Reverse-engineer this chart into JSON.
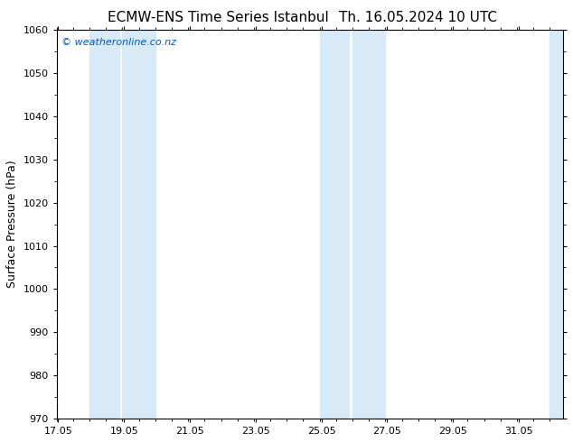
{
  "title_left": "ECMW-ENS Time Series Istanbul",
  "title_right": "Th. 16.05.2024 10 UTC",
  "ylabel": "Surface Pressure (hPa)",
  "ylim": [
    970,
    1060
  ],
  "yticks": [
    970,
    980,
    990,
    1000,
    1010,
    1020,
    1030,
    1040,
    1050,
    1060
  ],
  "xlim_start": 17.0,
  "xlim_end": 32.4,
  "xticks": [
    17.05,
    19.05,
    21.05,
    23.05,
    25.05,
    27.05,
    29.05,
    31.05
  ],
  "xticklabels": [
    "17.05",
    "19.05",
    "21.05",
    "23.05",
    "25.05",
    "27.05",
    "29.05",
    "31.05"
  ],
  "shaded_bands": [
    {
      "x_start": 18.0,
      "x_end": 18.9
    },
    {
      "x_start": 19.0,
      "x_end": 20.0
    },
    {
      "x_start": 25.0,
      "x_end": 25.9
    },
    {
      "x_start": 26.0,
      "x_end": 27.0
    },
    {
      "x_start": 32.0,
      "x_end": 32.4
    }
  ],
  "band_color": "#d8eaf7",
  "watermark": "© weatheronline.co.nz",
  "watermark_color": "#0055cc",
  "bg_color": "#ffffff",
  "plot_bg_color": "#ffffff",
  "title_fontsize": 11,
  "tick_fontsize": 8,
  "ylabel_fontsize": 9
}
